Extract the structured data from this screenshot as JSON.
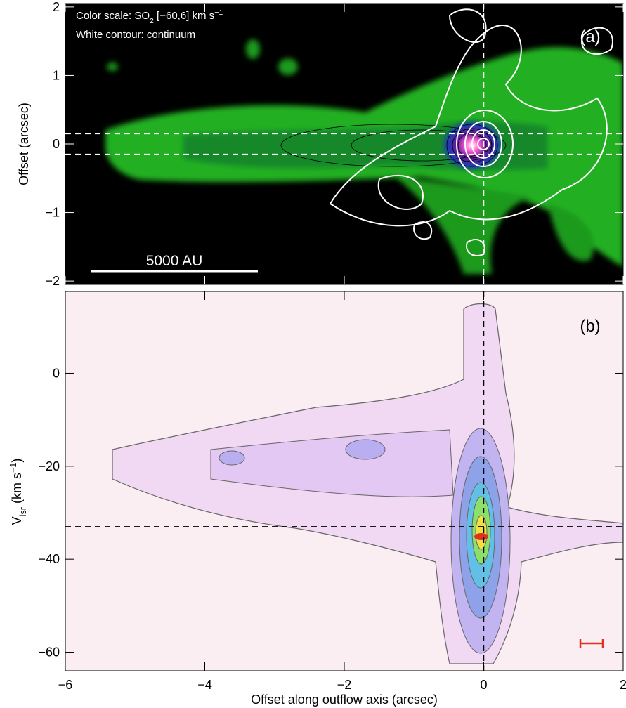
{
  "chart_data": [
    {
      "type": "image",
      "panel_label": "(a)",
      "annotations": [
        {
          "text": "Color scale: SO",
          "sub": "2",
          "after": " [−60,6] km s",
          "sup": "−1"
        },
        {
          "text": "White contour: continuum"
        }
      ],
      "scale_bar": "5000 AU",
      "ylabel": "Offset (arcsec)",
      "xlim": [
        -6,
        2
      ],
      "ylim": [
        -2.05,
        2.05
      ],
      "yticks": [
        2,
        1,
        0,
        {
          "value": -1,
          "label": "−1"
        },
        {
          "value": -2,
          "label": "−2"
        }
      ],
      "hlines": [
        0.15,
        -0.15
      ],
      "vlines": [
        0
      ]
    },
    {
      "type": "image",
      "panel_label": "(b)",
      "ylabel": {
        "text": "V",
        "sub": "lsr",
        "after": " (km s",
        "sup": "−1",
        "end": ")"
      },
      "xlabel": "Offset along outflow axis (arcsec)",
      "xlim": [
        -6,
        2
      ],
      "ylim": [
        -64,
        17.6
      ],
      "xticks": [
        {
          "value": -6,
          "label": "−6"
        },
        {
          "value": -4,
          "label": "−4"
        },
        {
          "value": -2,
          "label": "−2"
        },
        0,
        2
      ],
      "yticks": [
        0,
        {
          "value": -20,
          "label": "−20"
        },
        {
          "value": -40,
          "label": "−40"
        },
        {
          "value": -60,
          "label": "−60"
        }
      ],
      "hlines": [
        -33
      ],
      "vlines": [
        0
      ]
    }
  ]
}
